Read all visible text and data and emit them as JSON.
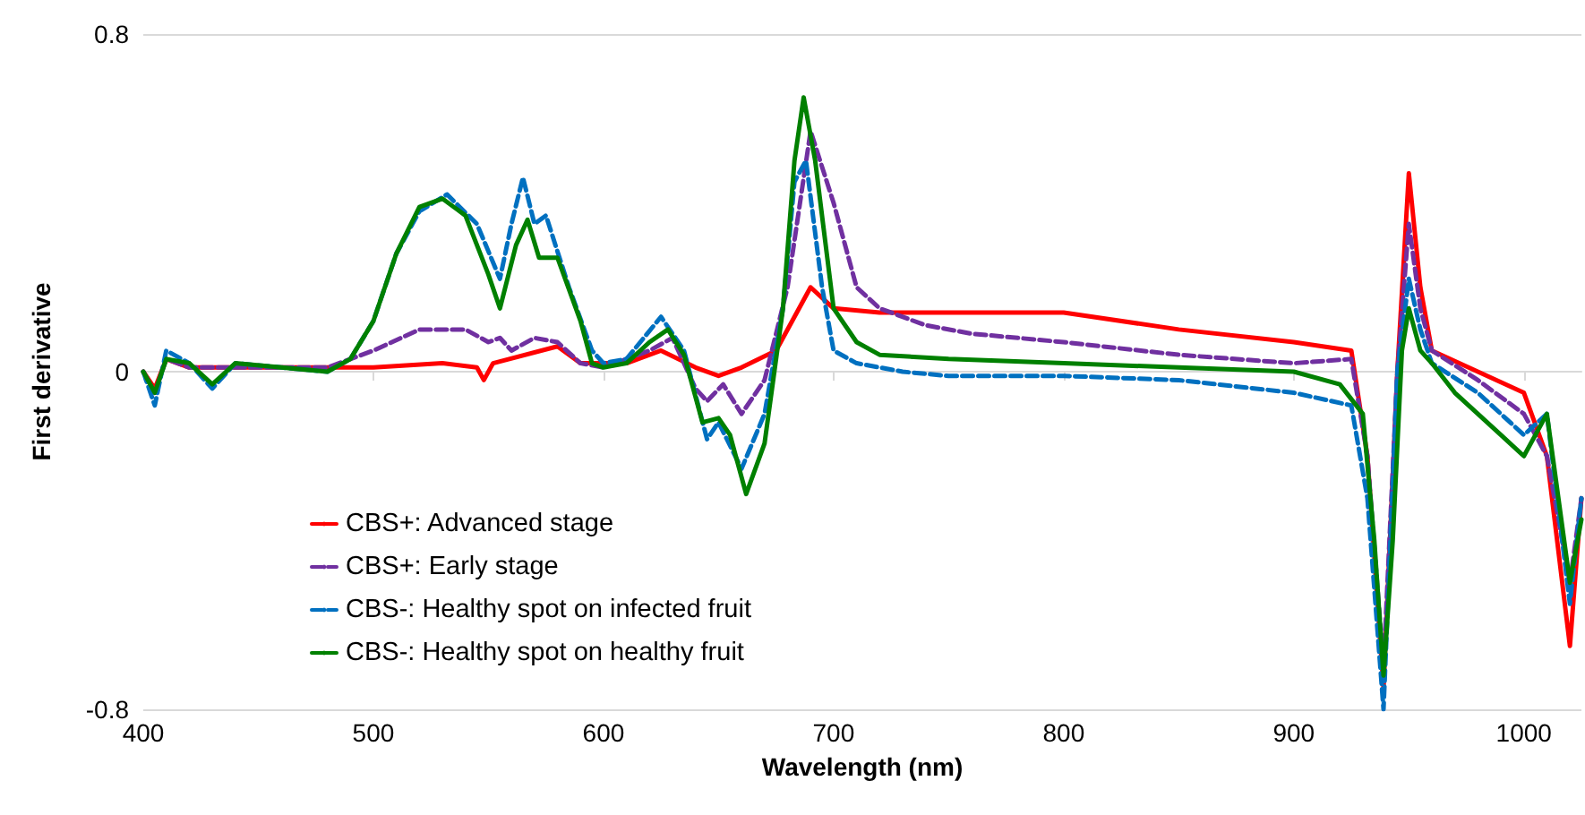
{
  "chart_data": {
    "type": "line",
    "xlabel": "Wavelength (nm)",
    "ylabel": "First derivative",
    "xlim": [
      400,
      1025
    ],
    "xticks": [
      400,
      500,
      600,
      700,
      800,
      900,
      1000
    ],
    "ylim": [
      -0.8,
      0.8
    ],
    "yticks": [
      -0.8,
      0,
      0.8
    ],
    "grid": "y",
    "legend": "bottom left",
    "marker": "none",
    "series": [
      {
        "name": "CBS+: Advanced stage",
        "color": "#ff0000",
        "line_style": "solid",
        "x": [
          400,
          405,
          410,
          420,
          440,
          460,
          480,
          500,
          530,
          545,
          548,
          552,
          580,
          590,
          610,
          625,
          640,
          650,
          660,
          675,
          690,
          700,
          720,
          750,
          800,
          850,
          900,
          925,
          932,
          939,
          945,
          950,
          955,
          960,
          980,
          1000,
          1010,
          1020,
          1025
        ],
        "values": [
          0,
          -0.04,
          0.03,
          0.01,
          0.01,
          0.01,
          0.01,
          0.01,
          0.02,
          0.01,
          -0.02,
          0.02,
          0.06,
          0.02,
          0.02,
          0.05,
          0.01,
          -0.01,
          0.01,
          0.05,
          0.2,
          0.15,
          0.14,
          0.14,
          0.14,
          0.1,
          0.07,
          0.05,
          -0.2,
          -0.75,
          0,
          0.47,
          0.2,
          0.05,
          0,
          -0.05,
          -0.2,
          -0.65,
          -0.3
        ]
      },
      {
        "name": "CBS+: Early stage",
        "color": "#7030a0",
        "line_style": "dashed",
        "x": [
          400,
          405,
          410,
          420,
          440,
          460,
          480,
          500,
          520,
          540,
          550,
          555,
          560,
          570,
          580,
          590,
          600,
          620,
          630,
          640,
          645,
          652,
          660,
          670,
          680,
          690,
          700,
          710,
          720,
          740,
          760,
          800,
          850,
          900,
          925,
          932,
          939,
          945,
          950,
          955,
          960,
          980,
          1000,
          1010,
          1020,
          1025
        ],
        "values": [
          0,
          -0.05,
          0.03,
          0.01,
          0.01,
          0.01,
          0.01,
          0.05,
          0.1,
          0.1,
          0.07,
          0.08,
          0.05,
          0.08,
          0.07,
          0.02,
          0.01,
          0.05,
          0.08,
          -0.04,
          -0.07,
          -0.03,
          -0.1,
          -0.02,
          0.2,
          0.57,
          0.4,
          0.2,
          0.15,
          0.11,
          0.09,
          0.07,
          0.04,
          0.02,
          0.03,
          -0.2,
          -0.7,
          0,
          0.35,
          0.15,
          0.05,
          -0.02,
          -0.1,
          -0.2,
          -0.5,
          -0.3
        ]
      },
      {
        "name": "CBS-: Healthy spot on infected fruit",
        "color": "#0070c0",
        "line_style": "dashed",
        "x": [
          400,
          405,
          410,
          420,
          430,
          440,
          460,
          480,
          490,
          500,
          510,
          520,
          532,
          545,
          555,
          560,
          565,
          570,
          575,
          585,
          595,
          600,
          610,
          625,
          635,
          645,
          650,
          660,
          670,
          678,
          683,
          688,
          695,
          700,
          710,
          730,
          750,
          800,
          850,
          900,
          925,
          932,
          939,
          945,
          950,
          955,
          960,
          980,
          1000,
          1010,
          1020,
          1025
        ],
        "values": [
          0,
          -0.08,
          0.05,
          0.02,
          -0.04,
          0.02,
          0.01,
          0,
          0.03,
          0.12,
          0.28,
          0.38,
          0.42,
          0.35,
          0.22,
          0.35,
          0.46,
          0.35,
          0.37,
          0.2,
          0.05,
          0.02,
          0.03,
          0.13,
          0.05,
          -0.16,
          -0.12,
          -0.23,
          -0.1,
          0.15,
          0.45,
          0.5,
          0.2,
          0.05,
          0.02,
          0,
          -0.01,
          -0.01,
          -0.02,
          -0.05,
          -0.08,
          -0.3,
          -0.8,
          0,
          0.22,
          0.1,
          0.02,
          -0.05,
          -0.15,
          -0.1,
          -0.55,
          -0.3
        ]
      },
      {
        "name": "CBS-: Healthy spot on healthy fruit",
        "color": "#008000",
        "line_style": "solid",
        "x": [
          400,
          405,
          410,
          420,
          430,
          440,
          460,
          480,
          490,
          500,
          510,
          520,
          530,
          540,
          550,
          555,
          562,
          567,
          572,
          580,
          590,
          595,
          600,
          610,
          620,
          628,
          635,
          643,
          650,
          655,
          662,
          670,
          678,
          683,
          687,
          692,
          700,
          710,
          720,
          750,
          800,
          850,
          900,
          920,
          930,
          935,
          939,
          943,
          947,
          950,
          955,
          960,
          970,
          980,
          990,
          1000,
          1010,
          1015,
          1020,
          1025
        ],
        "values": [
          0,
          -0.05,
          0.03,
          0.02,
          -0.03,
          0.02,
          0.01,
          0,
          0.03,
          0.12,
          0.28,
          0.39,
          0.41,
          0.37,
          0.23,
          0.15,
          0.3,
          0.36,
          0.27,
          0.27,
          0.12,
          0.02,
          0.01,
          0.02,
          0.07,
          0.1,
          0.04,
          -0.12,
          -0.11,
          -0.15,
          -0.29,
          -0.17,
          0.15,
          0.5,
          0.65,
          0.5,
          0.15,
          0.07,
          0.04,
          0.03,
          0.02,
          0.01,
          0,
          -0.03,
          -0.1,
          -0.4,
          -0.72,
          -0.4,
          0.05,
          0.15,
          0.05,
          0.02,
          -0.05,
          -0.1,
          -0.15,
          -0.2,
          -0.1,
          -0.3,
          -0.5,
          -0.35
        ]
      }
    ]
  }
}
